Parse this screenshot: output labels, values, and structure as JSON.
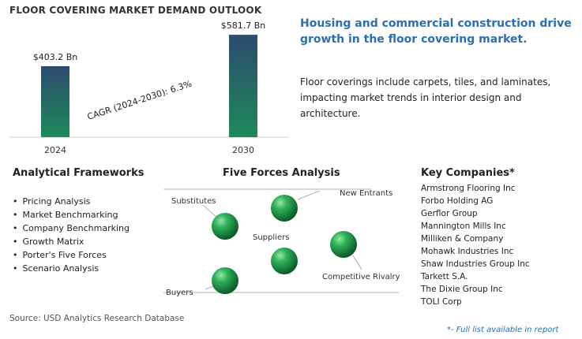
{
  "header": {
    "title": "FLOOR COVERING MARKET DEMAND OUTLOOK"
  },
  "chart_data": {
    "type": "bar",
    "categories": [
      "2024",
      "2030"
    ],
    "values": [
      403.2,
      581.7
    ],
    "data_labels": [
      "$403.2 Bn",
      "$581.7 Bn"
    ],
    "annotation": "CAGR (2024-2030):  6.3%",
    "ylim": [
      0,
      600
    ],
    "grid": false,
    "colors": {
      "bar_top": "#2c4a6e",
      "bar_bottom": "#1e8a5a"
    }
  },
  "headline": "Housing and commercial construction drive growth in the floor covering market.",
  "description": "Floor coverings include carpets, tiles, and laminates, impacting market trends in interior design and architecture.",
  "frameworks": {
    "title": "Analytical Frameworks",
    "items": [
      "Pricing Analysis",
      "Market Benchmarking",
      "Company Benchmarking",
      "Growth Matrix",
      "Porter's Five Forces",
      "Scenario Analysis"
    ]
  },
  "five_forces": {
    "title": "Five Forces Analysis",
    "labels": {
      "substitutes": "Substitutes",
      "new_entrants": "New Entrants",
      "suppliers": "Suppliers",
      "competitive_rivalry": "Competitive Rivalry",
      "buyers": "Buyers"
    },
    "sphere_color": "#1f9a4a"
  },
  "companies": {
    "title": "Key Companies*",
    "items": [
      "Armstrong Flooring Inc",
      "Forbo Holding AG",
      "Gerflor Group",
      "Mannington Mills Inc",
      "Milliken & Company",
      "Mohawk Industries Inc",
      "Shaw Industries Group Inc",
      "Tarkett S.A.",
      "The Dixie Group Inc",
      "TOLI Corp"
    ]
  },
  "source": "Source: USD Analytics Research Database",
  "footnote": "*- Full list available in report",
  "accent_color": "#2a6fb5"
}
